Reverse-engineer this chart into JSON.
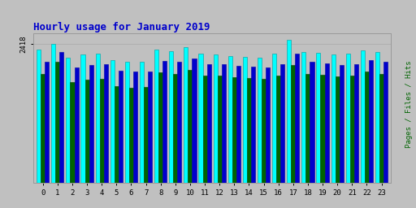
{
  "title": "Hourly usage for January 2019",
  "hours": [
    0,
    1,
    2,
    3,
    4,
    5,
    6,
    7,
    8,
    9,
    10,
    11,
    12,
    13,
    14,
    15,
    16,
    17,
    18,
    19,
    20,
    21,
    22,
    23
  ],
  "hits": [
    2320,
    2418,
    2180,
    2230,
    2250,
    2130,
    2100,
    2110,
    2320,
    2290,
    2360,
    2250,
    2230,
    2210,
    2190,
    2170,
    2240,
    2490,
    2280,
    2260,
    2230,
    2240,
    2310,
    2270
  ],
  "files": [
    2100,
    2280,
    2000,
    2050,
    2060,
    1950,
    1930,
    1940,
    2120,
    2100,
    2160,
    2070,
    2060,
    2040,
    2020,
    2010,
    2060,
    2240,
    2100,
    2080,
    2050,
    2060,
    2130,
    2100
  ],
  "pages": [
    1900,
    2100,
    1750,
    1800,
    1810,
    1680,
    1660,
    1670,
    1920,
    1900,
    1960,
    1870,
    1860,
    1840,
    1820,
    1810,
    1860,
    2050,
    1900,
    1880,
    1850,
    1860,
    1930,
    1900
  ],
  "hits_color": "#00ffff",
  "files_color": "#0000cc",
  "pages_color": "#006400",
  "bg_color": "#c0c0c0",
  "plot_bg_color": "#c0c0c0",
  "title_color": "#0000cc",
  "bar_width": 0.28,
  "ylim_max": 2600,
  "ylim_min": 0,
  "ytick_val": 2418,
  "ytick_label": "2418",
  "grid_color": "#aaaaaa",
  "right_label": "Pages / Files / Hits",
  "pages_label_color": "#006400",
  "files_label_color": "#0000cc",
  "hits_label_color": "#00cccc"
}
